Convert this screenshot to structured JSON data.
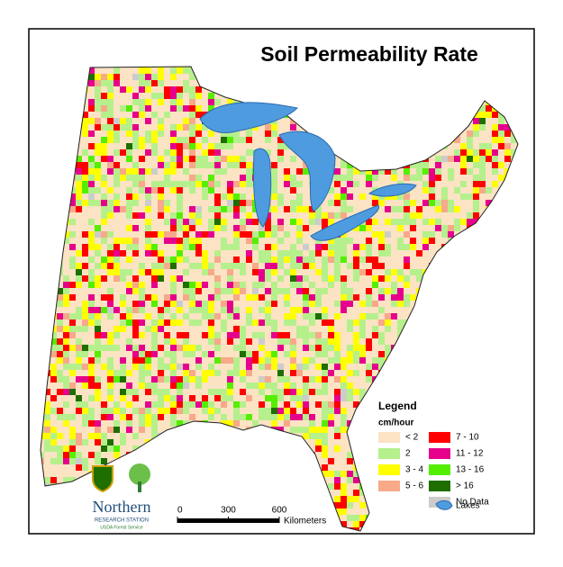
{
  "title": "Soil Permeability Rate",
  "legend": {
    "title": "Legend",
    "unit": "cm/hour",
    "items": [
      {
        "label": "< 2",
        "color": "#fbe3c4"
      },
      {
        "label": "2",
        "color": "#b5f08c"
      },
      {
        "label": "3 - 4",
        "color": "#ffff00"
      },
      {
        "label": "5 - 6",
        "color": "#f7a98a"
      },
      {
        "label": "7 - 10",
        "color": "#ff0000"
      },
      {
        "label": "11 - 12",
        "color": "#e6008c"
      },
      {
        "label": "13 - 16",
        "color": "#55ee00"
      },
      {
        "label": "> 16",
        "color": "#1e6e00"
      },
      {
        "label": "No Data",
        "color": "#cccccc"
      }
    ],
    "lakes": {
      "label": "Lakes",
      "color": "#4f9be0"
    }
  },
  "scale_bar": {
    "ticks": [
      0,
      300,
      600
    ],
    "unit": "Kilometers"
  },
  "logo": {
    "name": "Northern",
    "subtitle": "RESEARCH STATION",
    "agency": "USDA Forest Service"
  }
}
